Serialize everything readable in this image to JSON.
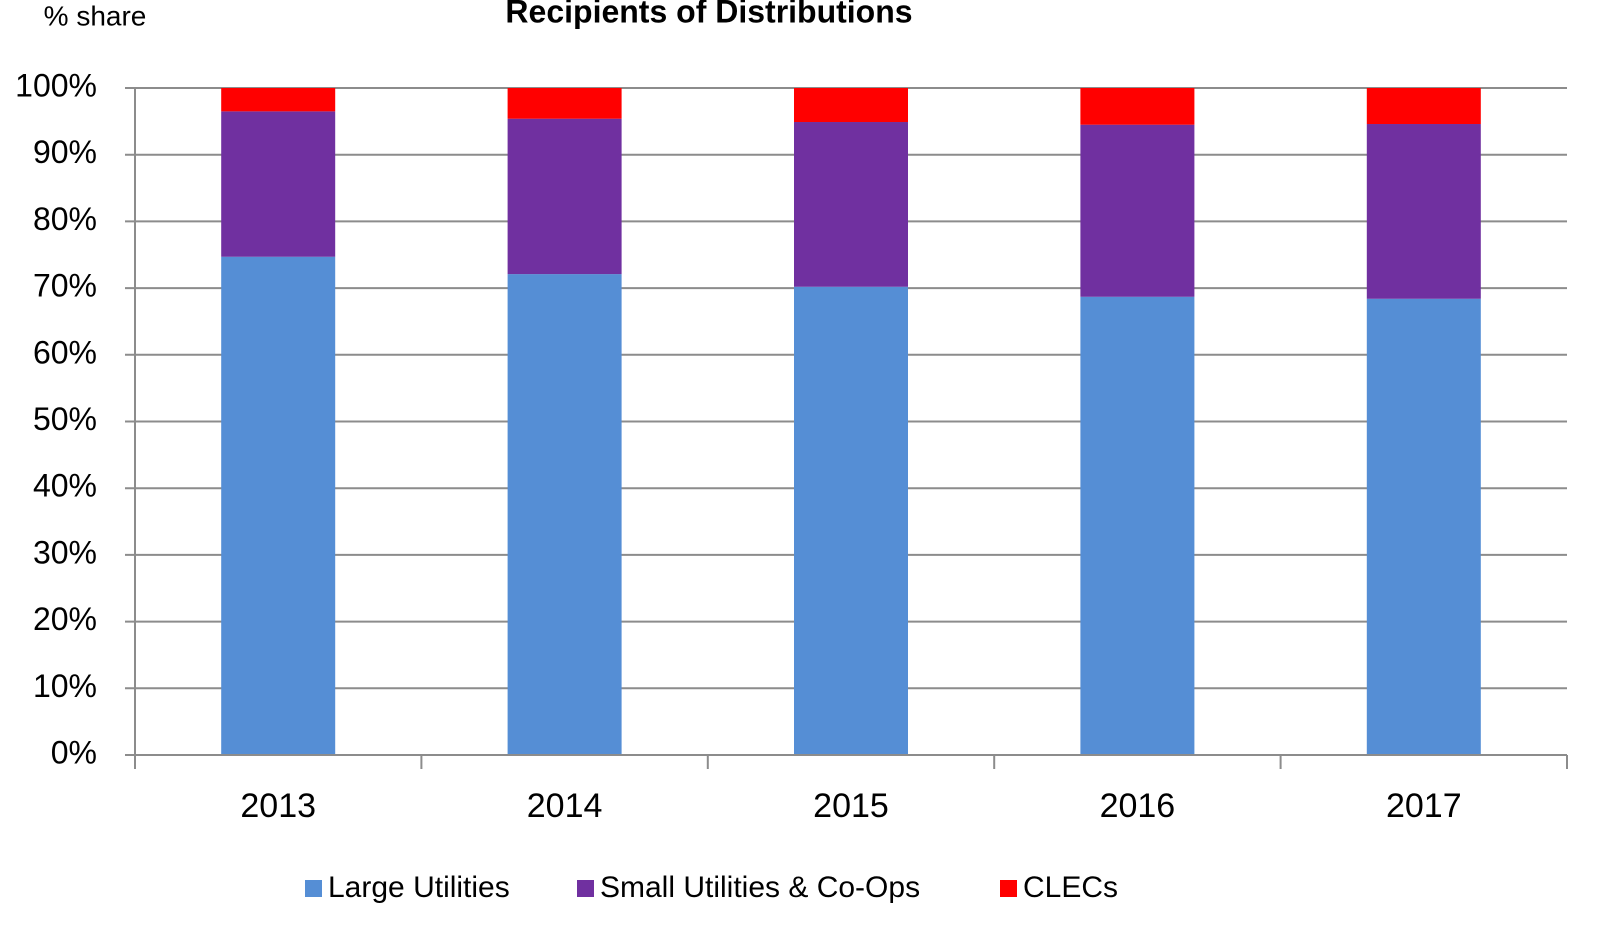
{
  "chart_data": {
    "type": "stacked_bar",
    "title": "Recipients of Distributions",
    "y_label": "% share",
    "categories": [
      "2013",
      "2014",
      "2015",
      "2016",
      "2017"
    ],
    "series": [
      {
        "name": "Large Utilities",
        "color": "#558ed5",
        "values": [
          74.7,
          72.1,
          70.2,
          68.7,
          68.4
        ]
      },
      {
        "name": "Small Utilities & Co-Ops",
        "color": "#7030a0",
        "values": [
          21.8,
          23.3,
          24.7,
          25.8,
          26.2
        ]
      },
      {
        "name": "CLECs",
        "color": "#ff0000",
        "values": [
          3.5,
          4.6,
          5.1,
          5.5,
          5.4
        ]
      }
    ],
    "ylim": [
      0,
      100
    ],
    "yticks": [
      {
        "value": 0,
        "label": "0%"
      },
      {
        "value": 10,
        "label": "10%"
      },
      {
        "value": 20,
        "label": "20%"
      },
      {
        "value": 30,
        "label": "30%"
      },
      {
        "value": 40,
        "label": "40%"
      },
      {
        "value": 50,
        "label": "50%"
      },
      {
        "value": 60,
        "label": "60%"
      },
      {
        "value": 70,
        "label": "70%"
      },
      {
        "value": 80,
        "label": "80%"
      },
      {
        "value": 90,
        "label": "90%"
      },
      {
        "value": 100,
        "label": "100%"
      }
    ],
    "grid": true,
    "legend": "bottom"
  }
}
